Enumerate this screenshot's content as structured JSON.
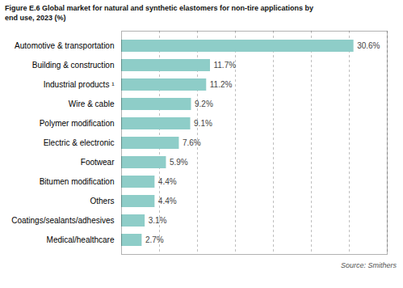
{
  "chart_data": {
    "type": "bar",
    "orientation": "horizontal",
    "title": "Figure E.6 Global market for natural and synthetic elastomers for non-tire applications by\nend use, 2023 (%)",
    "caption": "Source: Smithers",
    "categories": [
      "Medical/healthcare",
      "Coatings/sealants/adhesives",
      "Others",
      "Bitumen modification",
      "Footwear",
      "Electric & electronic",
      "Polymer modification",
      "Wire & cable",
      "Industrial products ¹",
      "Building & construction",
      "Automotive & transportation"
    ],
    "values": [
      2.7,
      3.1,
      4.4,
      4.4,
      5.9,
      7.6,
      9.1,
      9.2,
      11.2,
      11.7,
      30.6
    ],
    "value_labels": [
      "2.7%",
      "3.1%",
      "4.4%",
      "4.4%",
      "5.9%",
      "7.6%",
      "9.1%",
      "9.2%",
      "11.2%",
      "11.7%",
      "30.6%"
    ],
    "data_labels": true,
    "color": "#8ecdc8",
    "xlim": [
      0,
      35
    ],
    "xticks": [
      5,
      10,
      15,
      20,
      25,
      30,
      35
    ],
    "grid": true,
    "tick_labels": "y"
  }
}
